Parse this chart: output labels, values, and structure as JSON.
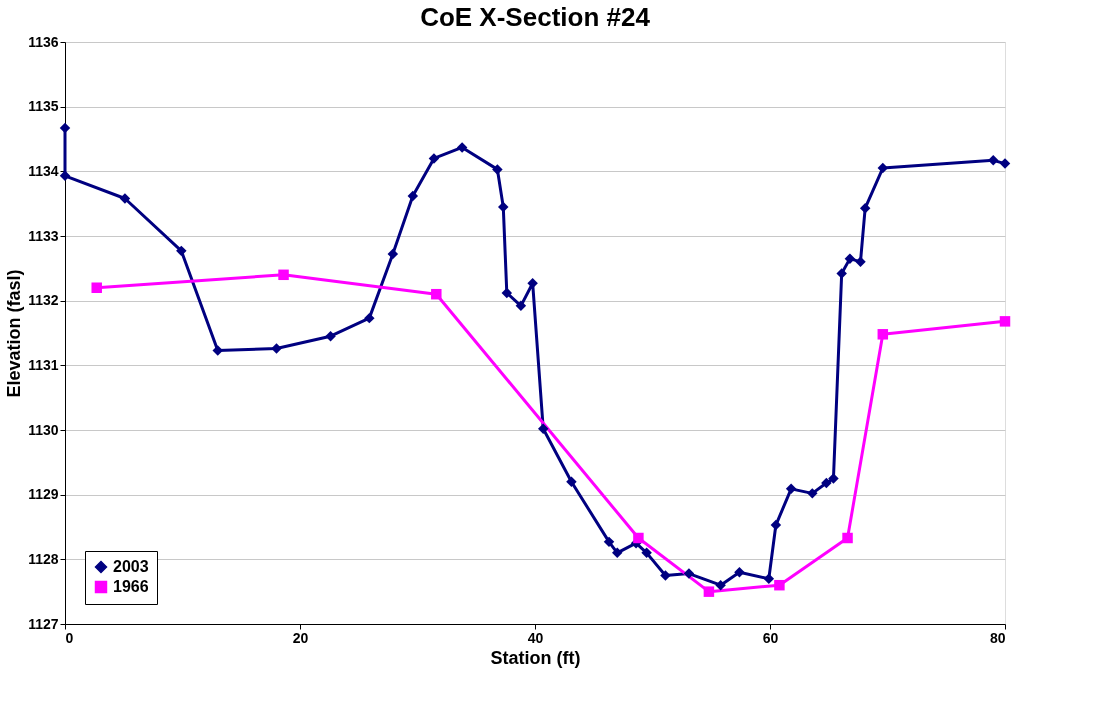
{
  "chart_data": {
    "type": "line",
    "title": "CoE X-Section #24",
    "xlabel": "Station (ft)",
    "ylabel": "Elevation (fasl)",
    "xlim": [
      0,
      80
    ],
    "xticks": [
      0,
      20,
      40,
      60,
      80
    ],
    "ylim": [
      1127,
      1136
    ],
    "yticks": [
      1127,
      1128,
      1129,
      1130,
      1131,
      1132,
      1133,
      1134,
      1135,
      1136
    ],
    "grid": "y",
    "legend": "bottom left",
    "line_style": "solid",
    "series": [
      {
        "name": "2003",
        "color": "#000080",
        "marker": "diamond",
        "x": [
          0,
          0,
          5.1,
          9.9,
          13,
          18,
          22.6,
          25.9,
          27.9,
          29.6,
          31.4,
          33.8,
          36.8,
          37.3,
          37.6,
          38.8,
          39.8,
          40.7,
          43.1,
          46.3,
          47,
          48.6,
          49.5,
          51.1,
          53.1,
          55.8,
          57.4,
          59.9,
          60.5,
          61.8,
          63.6,
          64.8,
          65.4,
          66.1,
          66.8,
          67.7,
          68.1,
          69.6,
          79,
          80
        ],
        "values": [
          1134.67,
          1133.93,
          1133.58,
          1132.77,
          1131.23,
          1131.26,
          1131.45,
          1131.73,
          1132.72,
          1133.62,
          1134.2,
          1134.37,
          1134.03,
          1133.45,
          1132.12,
          1131.92,
          1132.27,
          1130.02,
          1129.2,
          1128.27,
          1128.1,
          1128.25,
          1128.1,
          1127.75,
          1127.78,
          1127.6,
          1127.8,
          1127.7,
          1128.53,
          1129.09,
          1129.02,
          1129.18,
          1129.25,
          1132.42,
          1132.65,
          1132.6,
          1133.43,
          1134.05,
          1134.17,
          1134.12
        ]
      },
      {
        "name": "1966",
        "color": "#ff00ff",
        "marker": "square",
        "x": [
          2.7,
          18.6,
          31.6,
          48.8,
          54.8,
          60.8,
          66.6,
          69.6,
          80
        ],
        "values": [
          1132.2,
          1132.4,
          1132.1,
          1128.33,
          1127.5,
          1127.6,
          1128.33,
          1131.48,
          1131.68
        ]
      }
    ]
  }
}
